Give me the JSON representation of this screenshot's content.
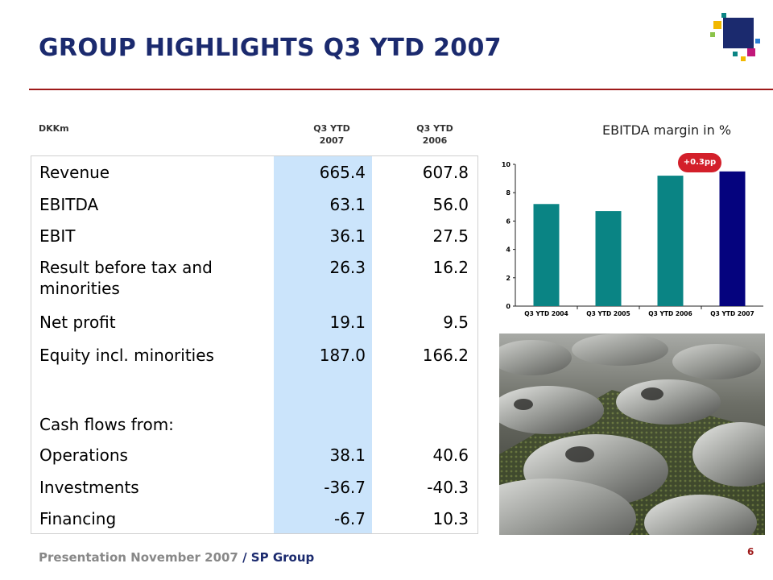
{
  "header": {
    "title": "GROUP HIGHLIGHTS Q3 YTD 2007"
  },
  "table": {
    "col_label": "DKKm",
    "col1": "Q3 YTD\n2007",
    "col2": "Q3 YTD\n2006",
    "rows": [
      {
        "label": "Revenue",
        "v1": "665.4",
        "v2": "607.8"
      },
      {
        "label": "EBITDA",
        "v1": "63.1",
        "v2": "56.0"
      },
      {
        "label": "EBIT",
        "v1": "36.1",
        "v2": "27.5"
      },
      {
        "label": "Result before tax and minorities",
        "v1": "26.3",
        "v2": "16.2"
      },
      {
        "label": "Net profit",
        "v1": "19.1",
        "v2": "9.5"
      },
      {
        "label": "Equity incl. minorities",
        "v1": "187.0",
        "v2": "166.2"
      },
      {
        "label": "Cash flows from:",
        "v1": "",
        "v2": ""
      },
      {
        "label": "Operations",
        "v1": "38.1",
        "v2": "40.6"
      },
      {
        "label": "Investments",
        "v1": "-36.7",
        "v2": "-40.3"
      },
      {
        "label": "Financing",
        "v1": "-6.7",
        "v2": "10.3"
      }
    ]
  },
  "chart_data": {
    "type": "bar",
    "title": "EBITDA margin in %",
    "categories": [
      "Q3 YTD 2004",
      "Q3 YTD 2005",
      "Q3 YTD 2006",
      "Q3 YTD 2007"
    ],
    "values": [
      7.2,
      6.7,
      9.2,
      9.5
    ],
    "ylim": [
      0,
      10
    ],
    "yticks": [
      0,
      2,
      4,
      6,
      8,
      10
    ],
    "colors": [
      "#0a8484",
      "#0a8484",
      "#0a8484",
      "#05037e"
    ],
    "annotation": "+0.3pp",
    "annotation_color": "#d31f2a"
  },
  "footer": {
    "presentation": "Presentation November 2007",
    "company": "/ SP Group",
    "page": "6"
  },
  "logo": {
    "name": "sp-group-logo"
  },
  "photo": {
    "name": "product-photo-metal-parts"
  }
}
